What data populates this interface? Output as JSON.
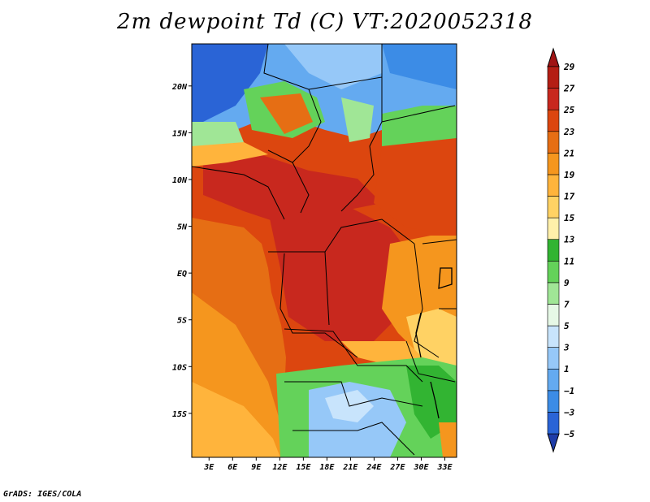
{
  "title": "2m dewpoint Td (C) VT:2020052318",
  "credit": "GrADS: IGES/COLA",
  "lat_labels": [
    "20N",
    "15N",
    "10N",
    "5N",
    "EQ",
    "5S",
    "10S",
    "15S"
  ],
  "lat_values": [
    20,
    15,
    10,
    5,
    0,
    -5,
    -10,
    -15
  ],
  "lon_labels": [
    "3E",
    "6E",
    "9E",
    "12E",
    "15E",
    "18E",
    "21E",
    "24E",
    "27E",
    "30E",
    "33E"
  ],
  "lon_values": [
    3,
    6,
    9,
    12,
    15,
    18,
    21,
    24,
    27,
    30,
    33
  ],
  "map_extent": {
    "lon_min": 0.8,
    "lon_max": 34.5,
    "lat_min": -19.7,
    "lat_max": 24.5
  },
  "colorbar": {
    "labels": [
      "29",
      "27",
      "25",
      "23",
      "21",
      "19",
      "17",
      "15",
      "13",
      "11",
      "9",
      "7",
      "5",
      "3",
      "1",
      "−1",
      "−3",
      "−5"
    ],
    "colors": [
      "#1e3ca8",
      "#2a64d6",
      "#3c8ce6",
      "#64aaf0",
      "#96c8f8",
      "#c8e4fc",
      "#e6f8e6",
      "#a0e696",
      "#64d25a",
      "#32b432",
      "#fff0aa",
      "#ffd264",
      "#ffb43c",
      "#f5961e",
      "#e66e14",
      "#dc460f",
      "#c8281e",
      "#b41e14",
      "#a01414"
    ]
  }
}
